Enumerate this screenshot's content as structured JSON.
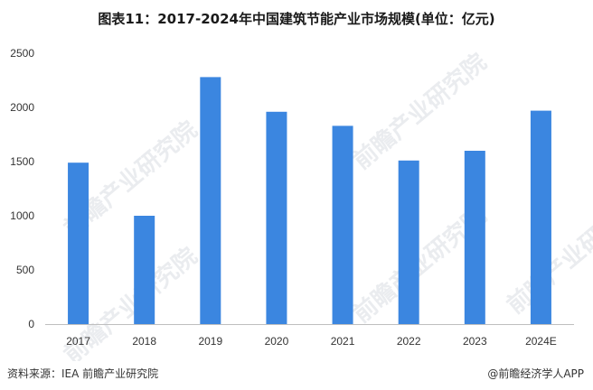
{
  "title": "图表11：2017-2024年中国建筑节能产业市场规模(单位：亿元)",
  "watermark": "前瞻产业研究院",
  "footer": {
    "source": "资料来源：IEA 前瞻产业研究院",
    "brand": "@前瞻经济学人APP"
  },
  "colors": {
    "bar": "#3b86e0",
    "axis": "#bfbfbf"
  },
  "chart_data": {
    "type": "bar",
    "categories": [
      "2017",
      "2018",
      "2019",
      "2020",
      "2021",
      "2022",
      "2023",
      "2024E"
    ],
    "values": [
      1490,
      1000,
      2280,
      1960,
      1830,
      1510,
      1600,
      1970
    ],
    "ylim": [
      0,
      2500
    ],
    "yticks": [
      0,
      500,
      1000,
      1500,
      2000,
      2500
    ],
    "xlabel": "",
    "ylabel": "",
    "grid": false,
    "legend": "none"
  }
}
